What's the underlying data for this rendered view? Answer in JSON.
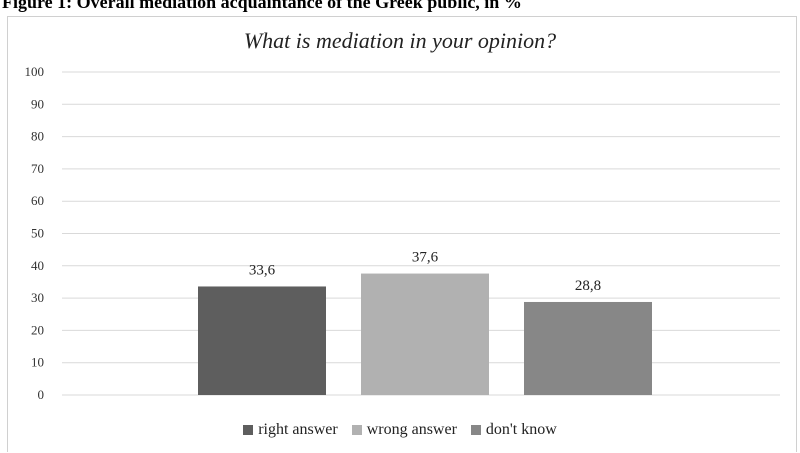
{
  "figure_caption": "Figure 1: Overall mediation acquaintance of the Greek public, in %",
  "colors": {
    "right answer": "#5e5e5e",
    "wrong answer": "#b1b1b1",
    "don't know": "#878787",
    "grid": "#d9d9d9"
  },
  "chart_data": {
    "type": "bar",
    "title": "What is mediation in your opinion?",
    "categories": [
      "right answer",
      "wrong answer",
      "don't know"
    ],
    "values": [
      33.6,
      37.6,
      28.8
    ],
    "value_labels": [
      "33,6",
      "37,6",
      "28,8"
    ],
    "ylim": [
      0,
      100
    ],
    "yticks": [
      0,
      10,
      20,
      30,
      40,
      50,
      60,
      70,
      80,
      90,
      100
    ],
    "grid": true,
    "legend_position": "bottom"
  }
}
